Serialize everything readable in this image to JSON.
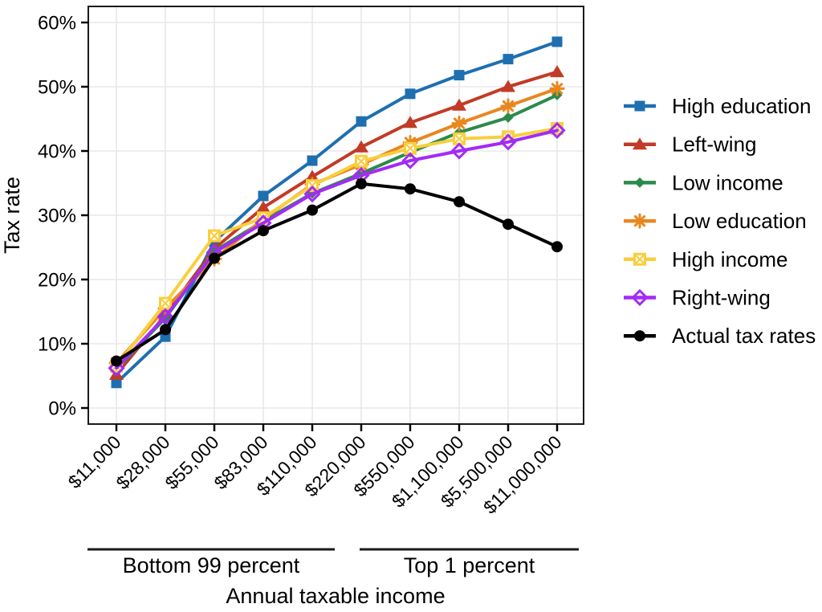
{
  "figure": {
    "background": "#ffffff",
    "text_color": "#000000",
    "grid_color": "#e8e8e8",
    "panel_border_color": "#1a1a1a"
  },
  "chart_data": {
    "type": "line",
    "title": "",
    "xlabel": "Annual taxable income",
    "ylabel": "Tax rate",
    "ylim": [
      0,
      60
    ],
    "y_tick_step": 10,
    "y_tick_labels": [
      "0%",
      "10%",
      "20%",
      "30%",
      "40%",
      "50%",
      "60%"
    ],
    "grid": true,
    "legend_position": "right",
    "categories": [
      "$11,000",
      "$28,000",
      "$55,000",
      "$83,000",
      "$110,000",
      "$220,000",
      "$550,000",
      "$1,100,000",
      "$5,500,000",
      "$11,000,000"
    ],
    "x_groups": [
      {
        "label": "Bottom 99 percent"
      },
      {
        "label": "Top 1 percent"
      }
    ],
    "series": [
      {
        "name": "High education",
        "color": "#1E6FB0",
        "marker": "square",
        "values": [
          3.9,
          11.1,
          25.9,
          33.0,
          38.5,
          44.6,
          48.9,
          51.8,
          54.3,
          57.0
        ]
      },
      {
        "name": "Left-wing",
        "color": "#C23B26",
        "marker": "triangle",
        "values": [
          5.2,
          14.5,
          24.8,
          31.2,
          36.0,
          40.6,
          44.4,
          47.1,
          50.0,
          52.3
        ]
      },
      {
        "name": "Low income",
        "color": "#2B8A4B",
        "marker": "diamond",
        "values": [
          6.0,
          14.0,
          24.4,
          29.1,
          33.4,
          36.5,
          39.8,
          42.9,
          45.2,
          48.7
        ]
      },
      {
        "name": "Low education",
        "color": "#E8871F",
        "marker": "asterisk",
        "values": [
          7.0,
          15.5,
          23.2,
          29.4,
          34.8,
          37.9,
          41.3,
          44.3,
          47.0,
          49.7
        ]
      },
      {
        "name": "High income",
        "color": "#F9CE3E",
        "marker": "square-cross",
        "values": [
          6.5,
          16.3,
          26.8,
          29.6,
          34.6,
          38.4,
          40.4,
          41.9,
          42.2,
          43.5
        ]
      },
      {
        "name": "Right-wing",
        "color": "#A22BF5",
        "marker": "open-diamond",
        "values": [
          6.2,
          14.2,
          24.2,
          28.8,
          33.3,
          36.2,
          38.5,
          40.0,
          41.4,
          43.2
        ]
      },
      {
        "name": "Actual tax rates",
        "color": "#000000",
        "marker": "circle",
        "values": [
          7.3,
          12.2,
          23.3,
          27.6,
          30.8,
          34.9,
          34.1,
          32.1,
          28.6,
          25.1
        ]
      }
    ]
  }
}
